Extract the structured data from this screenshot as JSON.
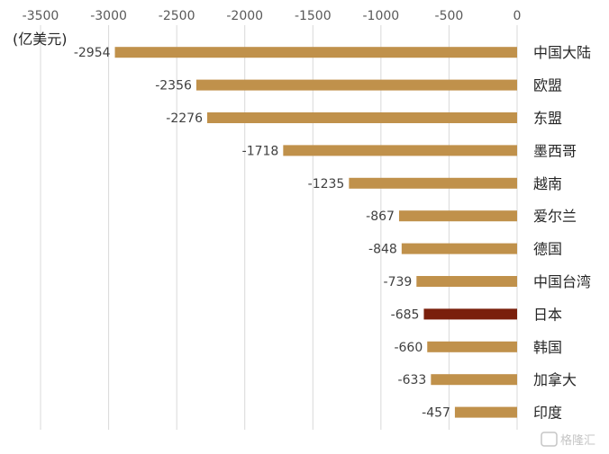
{
  "chart_data": {
    "type": "bar",
    "orientation": "horizontal",
    "unit_label": "(亿美元)",
    "categories": [
      "中国大陆",
      "欧盟",
      "东盟",
      "墨西哥",
      "越南",
      "爱尔兰",
      "德国",
      "中国台湾",
      "日本",
      "韩国",
      "加拿大",
      "印度"
    ],
    "values": [
      -2954,
      -2356,
      -2276,
      -1718,
      -1235,
      -867,
      -848,
      -739,
      -685,
      -660,
      -633,
      -457
    ],
    "value_labels": [
      "-2954",
      "-2356",
      "-2276",
      "-1718",
      "-1235",
      "-867",
      "-848",
      "-739",
      "-685",
      "-660",
      "-633",
      "-457"
    ],
    "xlim": [
      -3500,
      0
    ],
    "xticks": [
      -3500,
      -3000,
      -2500,
      -2000,
      -1500,
      -1000,
      -500,
      0
    ],
    "xtick_labels": [
      "-3500",
      "-3000",
      "-2500",
      "-2000",
      "-1500",
      "-1000",
      "-500",
      "0"
    ],
    "axis_position": "top",
    "grid": true,
    "bar_color": "#c0914b",
    "highlight_index": 8,
    "highlight_color": "#7a1f0c"
  },
  "watermark": {
    "icon": "logo-icon",
    "text": "格隆汇"
  }
}
